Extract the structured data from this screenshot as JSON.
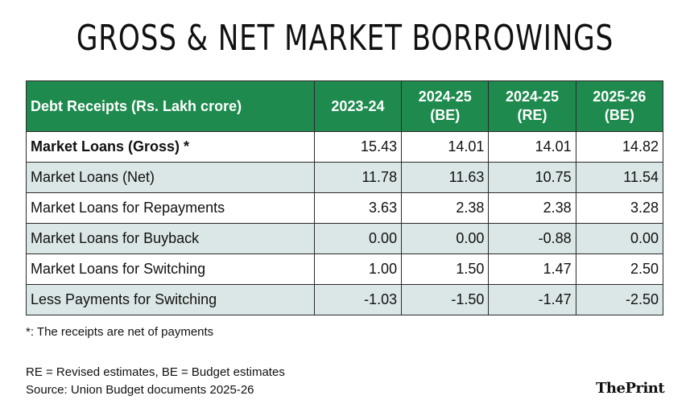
{
  "title": "GROSS & NET MARKET BORROWINGS",
  "table": {
    "header": {
      "label": "Debt Receipts (Rs. Lakh crore)",
      "years": [
        {
          "year": "2023-24",
          "tag": ""
        },
        {
          "year": "2024-25",
          "tag": "(BE)"
        },
        {
          "year": "2024-25",
          "tag": "(RE)"
        },
        {
          "year": "2025-26",
          "tag": "(BE)"
        }
      ]
    },
    "rows": [
      {
        "label": "Market Loans (Gross) *",
        "values": [
          "15.43",
          "14.01",
          "14.01",
          "14.82"
        ]
      },
      {
        "label": "Market Loans (Net)",
        "values": [
          "11.78",
          "11.63",
          "10.75",
          "11.54"
        ]
      },
      {
        "label": "Market Loans for Repayments",
        "values": [
          "3.63",
          "2.38",
          "2.38",
          "3.28"
        ]
      },
      {
        "label": "Market Loans for Buyback",
        "values": [
          "0.00",
          "0.00",
          "-0.88",
          "0.00"
        ]
      },
      {
        "label": "Market Loans for Switching",
        "values": [
          "1.00",
          "1.50",
          "1.47",
          "2.50"
        ]
      },
      {
        "label": "Less Payments for Switching",
        "values": [
          "-1.03",
          "-1.50",
          "-1.47",
          "-2.50"
        ]
      }
    ]
  },
  "footnote": "*: The receipts are net of payments",
  "definitions": "RE = Revised estimates, BE = Budget estimates",
  "source": "Source: Union Budget documents 2025-26",
  "logo": {
    "part1": "The",
    "part2": "Print"
  },
  "colors": {
    "header_green": "#1e8a4e",
    "row_shade": "#dbe7e6"
  }
}
